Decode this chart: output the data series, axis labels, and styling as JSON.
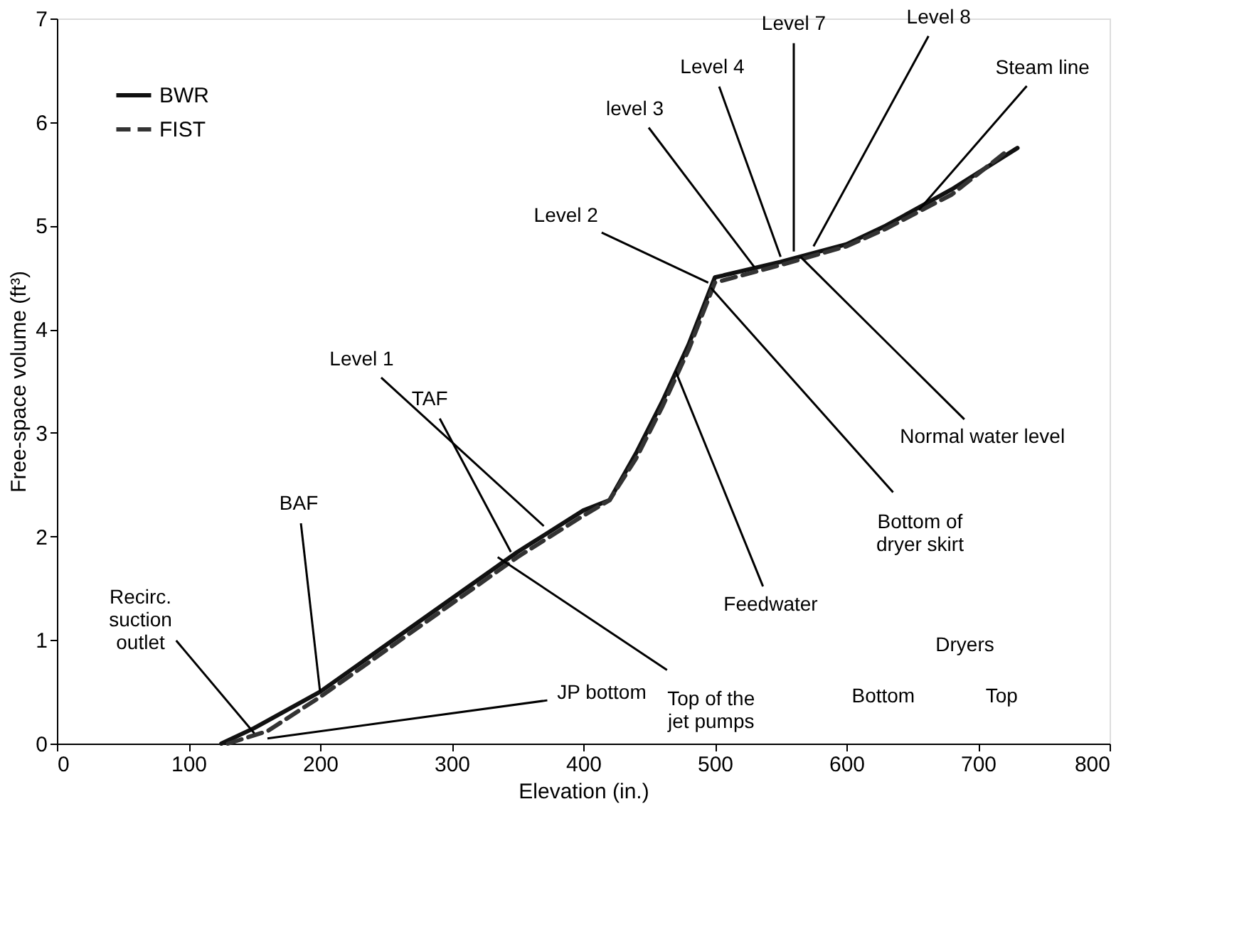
{
  "chart_data": {
    "type": "line",
    "xlabel": "Elevation (in.)",
    "ylabel": "Free-space volume (ft³)",
    "xlim": [
      0,
      800
    ],
    "xticks": [
      0,
      100,
      200,
      300,
      400,
      500,
      600,
      700,
      800
    ],
    "ylim": [
      0,
      7
    ],
    "yticks": [
      0,
      1,
      2,
      3,
      4,
      5,
      6,
      7
    ],
    "grid": false,
    "legend": "top left",
    "series": [
      {
        "name": "BWR",
        "color": "#111111",
        "line_style": "solid",
        "x": [
          125,
          150,
          200,
          250,
          300,
          350,
          400,
          420,
          440,
          460,
          480,
          500,
          550,
          600,
          630,
          680,
          730
        ],
        "values": [
          0,
          0.15,
          0.5,
          0.95,
          1.4,
          1.85,
          2.25,
          2.35,
          2.8,
          3.3,
          3.85,
          4.5,
          4.65,
          4.82,
          5.0,
          5.35,
          5.75
        ]
      },
      {
        "name": "FIST",
        "color": "#333333",
        "line_style": "dashed",
        "x": [
          130,
          160,
          200,
          250,
          300,
          350,
          400,
          420,
          440,
          460,
          480,
          500,
          550,
          600,
          630,
          680,
          720
        ],
        "values": [
          0,
          0.12,
          0.45,
          0.9,
          1.35,
          1.8,
          2.2,
          2.35,
          2.75,
          3.25,
          3.8,
          4.45,
          4.62,
          4.8,
          4.97,
          5.3,
          5.7
        ]
      }
    ],
    "annotations": [
      {
        "text": "Recirc.\nsuction\noutlet",
        "x": 150,
        "y": 0.1
      },
      {
        "text": "BAF",
        "x": 200,
        "y": 0.5
      },
      {
        "text": "TAF",
        "x": 345,
        "y": 1.85
      },
      {
        "text": "Level 1",
        "x": 370,
        "y": 2.1
      },
      {
        "text": "JP bottom",
        "x": 160,
        "y": 0.05
      },
      {
        "text": "Top of the\njet pumps",
        "x": 335,
        "y": 1.8
      },
      {
        "text": "Feedwater",
        "x": 470,
        "y": 3.6
      },
      {
        "text": "Bottom of\ndryer skirt",
        "x": 497,
        "y": 4.4
      },
      {
        "text": "Normal water level",
        "x": 565,
        "y": 4.7
      },
      {
        "text": "Level 2",
        "x": 495,
        "y": 4.45
      },
      {
        "text": "level 3",
        "x": 530,
        "y": 4.6
      },
      {
        "text": "Level 4",
        "x": 550,
        "y": 4.7
      },
      {
        "text": "Level 7",
        "x": 560,
        "y": 4.75
      },
      {
        "text": "Level 8",
        "x": 575,
        "y": 4.8
      },
      {
        "text": "Steam line",
        "x": 655,
        "y": 5.15
      },
      "Dryers",
      "Bottom",
      "Top"
    ]
  }
}
